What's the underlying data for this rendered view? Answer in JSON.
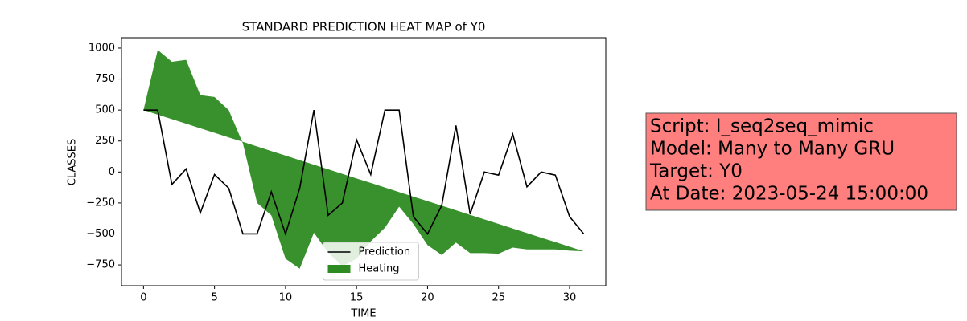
{
  "chart_data": {
    "type": "line",
    "title": "STANDARD PREDICTION HEAT MAP of Y0",
    "xlabel": "TIME",
    "ylabel": "CLASSES",
    "x": [
      0,
      1,
      2,
      3,
      4,
      5,
      6,
      7,
      8,
      9,
      10,
      11,
      12,
      13,
      14,
      15,
      16,
      17,
      18,
      19,
      20,
      21,
      22,
      23,
      24,
      25,
      26,
      27,
      28,
      29,
      30,
      31
    ],
    "series": [
      {
        "name": "Prediction",
        "color": "#000000",
        "kind": "line",
        "values": [
          500,
          500,
          -100,
          25,
          -330,
          -20,
          -130,
          -500,
          -500,
          -160,
          -500,
          -130,
          500,
          -350,
          -250,
          260,
          -20,
          500,
          500,
          -360,
          -500,
          -270,
          375,
          -340,
          0,
          -25,
          305,
          -120,
          0,
          -25,
          -360,
          -500
        ]
      },
      {
        "name": "Heating",
        "color": "#2e8b22",
        "kind": "area",
        "values": [
          500,
          985,
          890,
          905,
          620,
          605,
          500,
          230,
          -250,
          -350,
          -700,
          -780,
          -490,
          -650,
          -760,
          -700,
          -560,
          -450,
          -280,
          -420,
          -590,
          -670,
          -570,
          -655,
          -655,
          -660,
          -610,
          -625,
          -625,
          -625,
          -635,
          -640
        ],
        "baseline": [
          500,
          463,
          426,
          390,
          353,
          316,
          279,
          243,
          206,
          169,
          132,
          95,
          59,
          22,
          -15,
          -52,
          -88,
          -125,
          -162,
          -199,
          -235,
          -272,
          -309,
          -346,
          -383,
          -419,
          -456,
          -493,
          -530,
          -566,
          -603,
          -640
        ]
      }
    ],
    "xlim": [
      -1.55,
      32.55
    ],
    "ylim": [
      -918,
      1084
    ],
    "xticks": [
      0,
      5,
      10,
      15,
      20,
      25,
      30
    ],
    "yticks": [
      {
        "value": -750,
        "label": "−750"
      },
      {
        "value": -500,
        "label": "−500"
      },
      {
        "value": -250,
        "label": "−250"
      },
      0,
      250,
      500,
      750,
      1000
    ],
    "legend": "lower center",
    "annotations": [
      "Script: I_seq2seq_mimic",
      "Model: Many to Many GRU",
      "Target: Y0",
      "At Date: 2023-05-24 15:00:00"
    ],
    "annotation_color": "#ff7f7f"
  }
}
